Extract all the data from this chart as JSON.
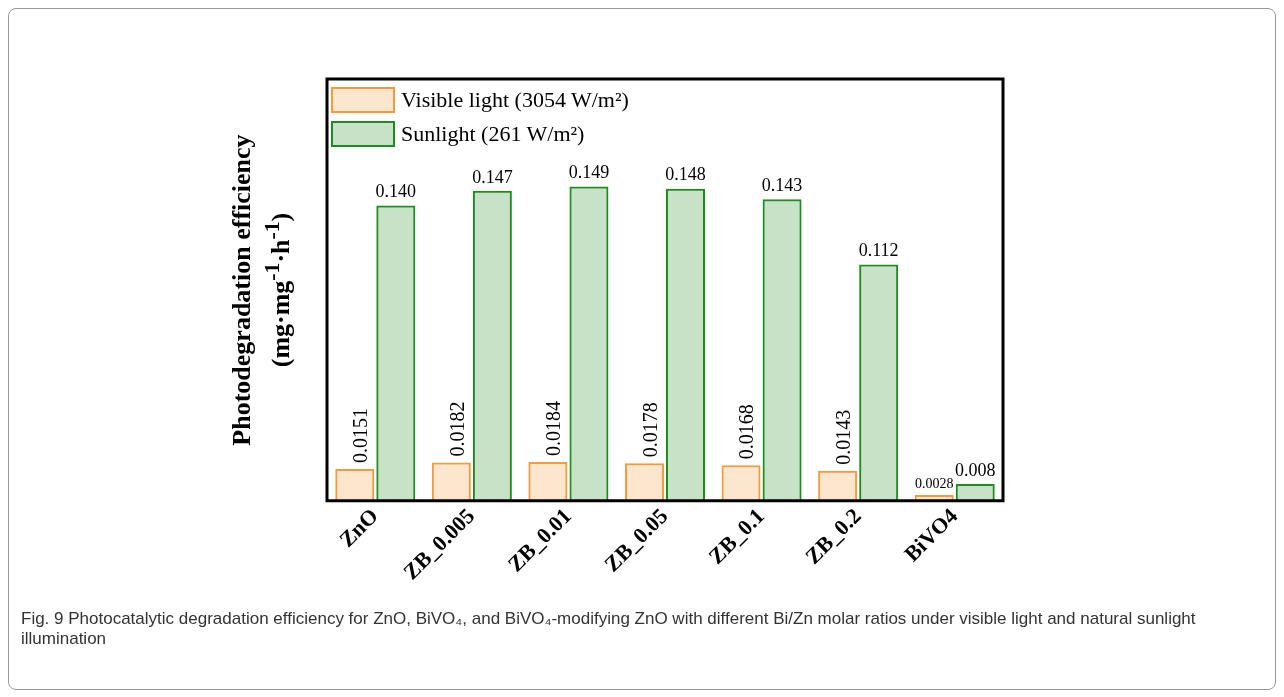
{
  "chart_data": {
    "type": "bar",
    "ylabel": "Photodegradation efficiency (mg·mg$^{-1}$·h$^{-1}$)",
    "categories": [
      "ZnO",
      "ZB_0.005",
      "ZB_0.01",
      "ZB_0.05",
      "ZB_0.1",
      "ZB_0.2",
      "BiVO4"
    ],
    "series": [
      {
        "name": "Visible light (3054 W/m²)",
        "color": "#f39a3c",
        "values": [
          0.0151,
          0.0182,
          0.0184,
          0.0178,
          0.0168,
          0.0143,
          0.0028
        ]
      },
      {
        "name": "Sunlight (261 W/m²)",
        "color": "#1e8c1e",
        "values": [
          0.14,
          0.147,
          0.149,
          0.148,
          0.143,
          0.112,
          0.008
        ],
        "value_labels": [
          "0.140",
          "0.147",
          "0.149",
          "0.148",
          "0.143",
          "0.112",
          "0.008"
        ]
      }
    ],
    "ylim": [
      0,
      0.2
    ],
    "tick_labels": "x",
    "grid": false,
    "legend": "top left",
    "data_labels": true,
    "annotations": [
      "Fig. 9 Photocatalytic degradation efficiency for ZnO, BiVO₄, and BiVO₄-modifying ZnO with different Bi/Zn molar ratios under visible light and natural sunlight illumination"
    ]
  }
}
